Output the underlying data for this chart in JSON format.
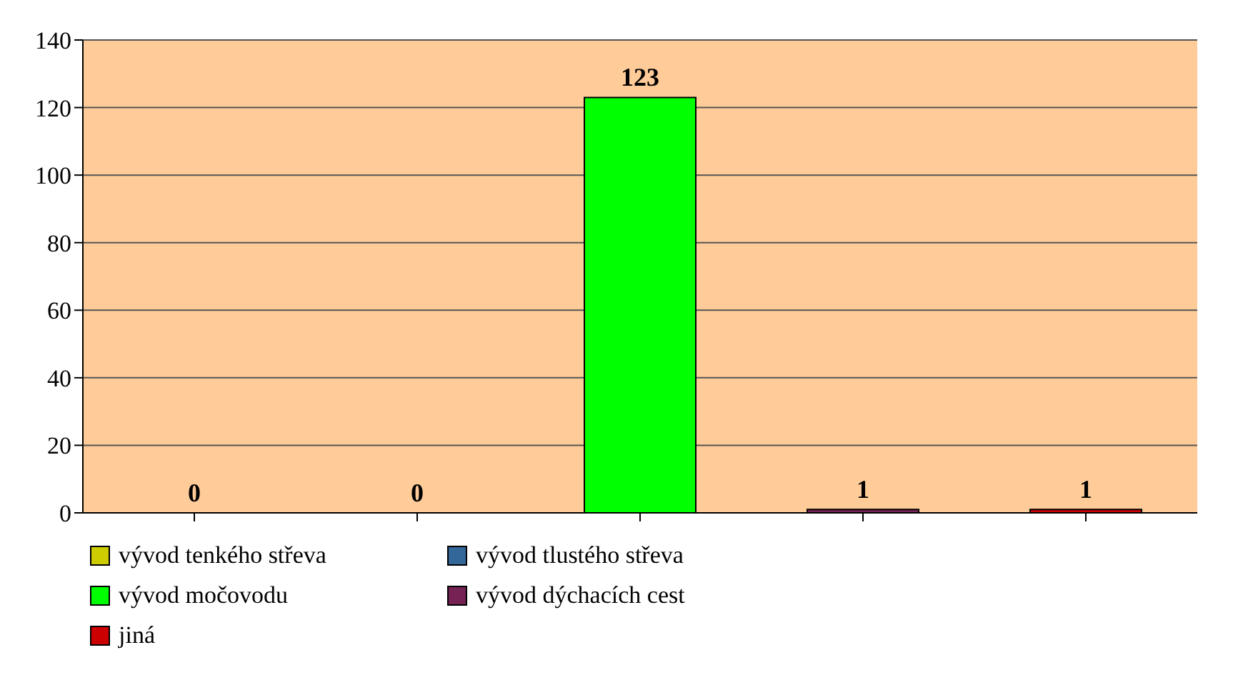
{
  "chart_data": {
    "type": "bar",
    "categories": [
      null,
      null,
      null,
      null,
      null
    ],
    "series": [
      {
        "name": "vývod tenkého střeva",
        "color": "#cccc00",
        "values": [
          0,
          null,
          null,
          null,
          null
        ]
      },
      {
        "name": "vývod tlustého střeva",
        "color": "#336699",
        "values": [
          null,
          0,
          null,
          null,
          null
        ]
      },
      {
        "name": "vývod močovodu",
        "color": "#00ff00",
        "values": [
          null,
          null,
          123,
          null,
          null
        ]
      },
      {
        "name": "vývod dýchacích cest",
        "color": "#772255",
        "values": [
          null,
          null,
          null,
          1,
          null
        ]
      },
      {
        "name": "jiná",
        "color": "#cc0000",
        "values": [
          null,
          null,
          null,
          null,
          1
        ]
      }
    ],
    "ylim": [
      0,
      140
    ],
    "yticks": [
      0,
      20,
      40,
      60,
      80,
      100,
      120,
      140
    ],
    "grid": "y",
    "legend": "bottom",
    "data_labels": true
  }
}
